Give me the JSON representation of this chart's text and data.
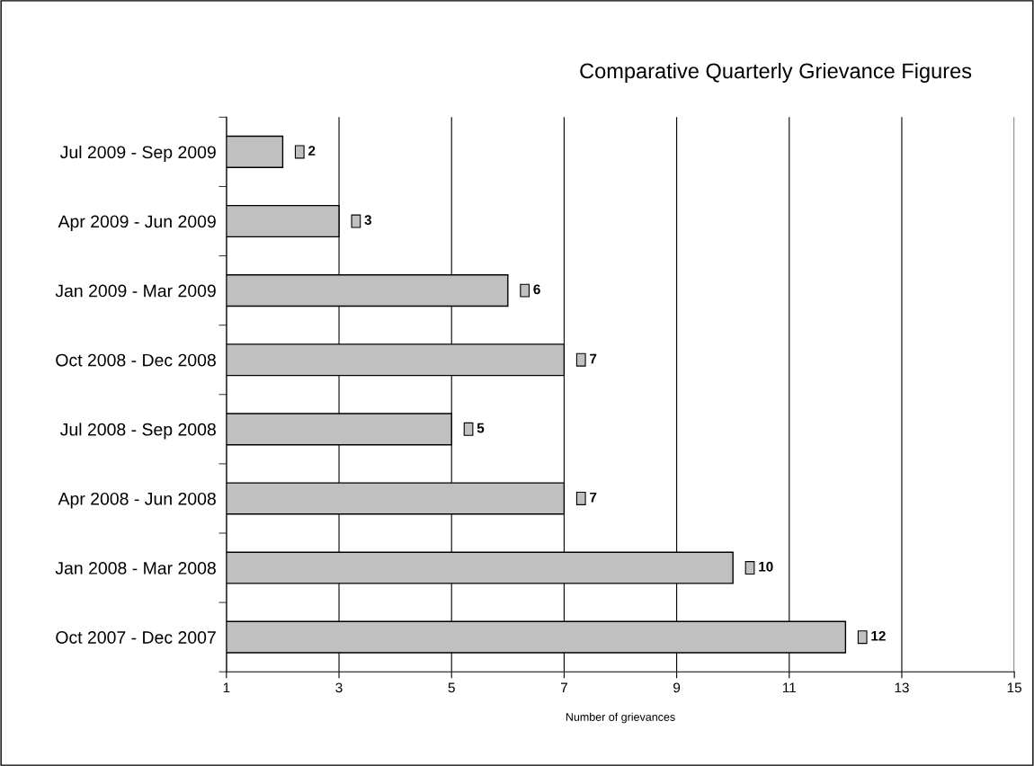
{
  "chart_data": {
    "type": "bar",
    "orientation": "horizontal",
    "title": "Comparative Quarterly Grievance Figures",
    "xlabel": "Number of grievances",
    "categories": [
      "Jul 2009 - Sep 2009",
      "Apr 2009 - Jun 2009",
      "Jan 2009 - Mar 2009",
      "Oct 2008 - Dec 2008",
      "Jul 2008 - Sep 2008",
      "Apr 2008 - Jun 2008",
      "Jan 2008 - Mar 2008",
      "Oct 2007 - Dec 2007"
    ],
    "values": [
      2,
      3,
      6,
      7,
      5,
      7,
      10,
      12
    ],
    "color": "#c0c0c0",
    "xlim": [
      1,
      15
    ],
    "xticks": [
      1,
      3,
      5,
      7,
      9,
      11,
      13,
      15
    ],
    "grid": "x",
    "data_labels": true
  }
}
